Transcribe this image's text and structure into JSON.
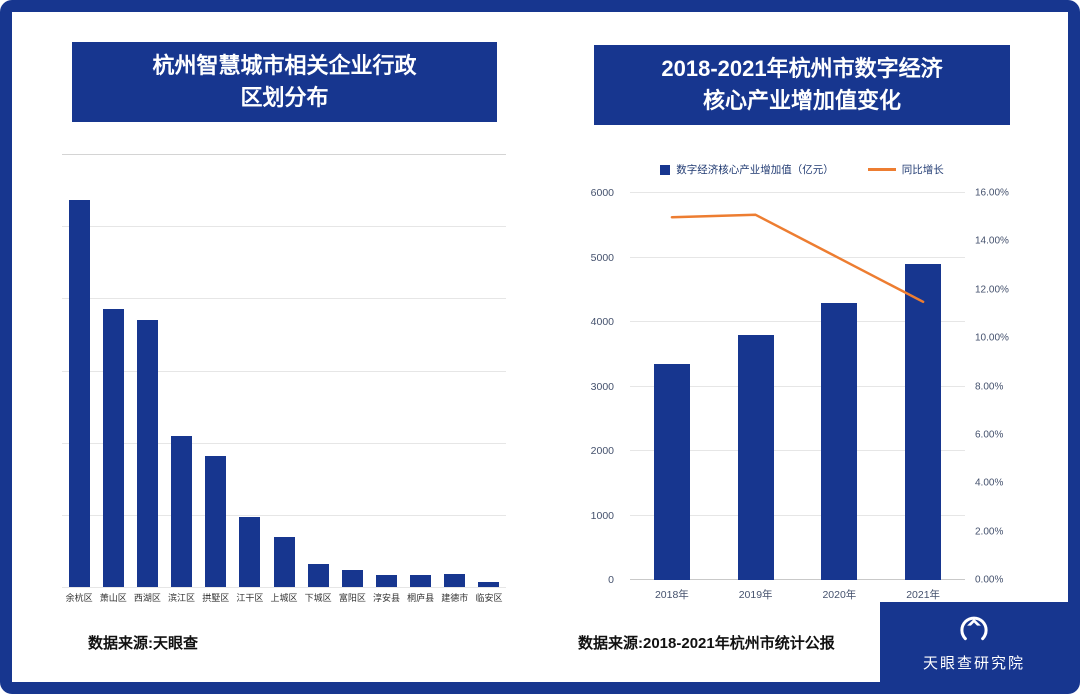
{
  "colors": {
    "navy": "#17368F",
    "orange": "#ED7D31",
    "grid": "#e6e6e6",
    "axis_text": "#44516d"
  },
  "footer": {
    "logo_text": "天眼查研究院"
  },
  "chart_data": [
    {
      "type": "bar",
      "title": "杭州智慧城市相关企业行政区划分布",
      "title_line1": "杭州智慧城市相关企业行政",
      "title_line2": "区划分布",
      "categories": [
        "余杭区",
        "萧山区",
        "西湖区",
        "滨江区",
        "拱墅区",
        "江干区",
        "上城区",
        "下城区",
        "富阳区",
        "淳安县",
        "桐庐县",
        "建德市",
        "临安区"
      ],
      "values": [
        100,
        72,
        69,
        39,
        34,
        18,
        13,
        6,
        4.5,
        3,
        3,
        3.3,
        1.3
      ],
      "ylim": [
        0,
        112
      ],
      "value_axis_visible": false,
      "grid": true,
      "bar_color": "#17368F",
      "source": "数据来源:天眼查"
    },
    {
      "type": "bar+line",
      "title": "2018-2021年杭州市数字经济核心产业增加值变化",
      "title_line1": "2018-2021年杭州市数字经济",
      "title_line2": "核心产业增加值变化",
      "categories": [
        "2018年",
        "2019年",
        "2020年",
        "2021年"
      ],
      "series": [
        {
          "name": "数字经济核心产业增加值（亿元）",
          "type": "bar",
          "axis": "left",
          "values": [
            3356,
            3795,
            4290,
            4905
          ],
          "color": "#17368F"
        },
        {
          "name": "同比增长",
          "type": "line",
          "axis": "right",
          "values": [
            15.0,
            15.1,
            13.3,
            11.5
          ],
          "unit": "%",
          "color": "#ED7D31"
        }
      ],
      "left_axis": {
        "min": 0,
        "max": 6000,
        "step": 1000
      },
      "right_axis": {
        "min": 0,
        "max": 16,
        "step": 2,
        "format": "percent2"
      },
      "grid": true,
      "legend_position": "top",
      "source": "数据来源:2018-2021年杭州市统计公报"
    }
  ]
}
